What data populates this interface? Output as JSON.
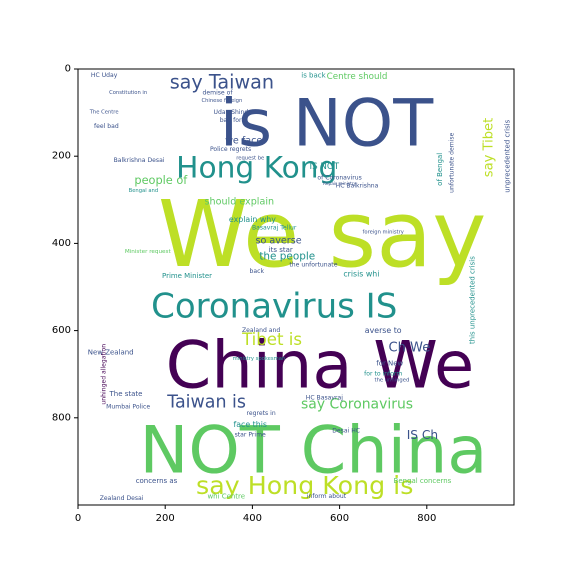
{
  "chart_data": {
    "type": "wordcloud",
    "title": "",
    "xlabel": "",
    "ylabel": "",
    "xlim": [
      0,
      1000
    ],
    "ylim": [
      1000,
      0
    ],
    "x_ticks": [
      0,
      200,
      400,
      600,
      800
    ],
    "y_ticks": [
      0,
      200,
      400,
      600,
      800
    ],
    "grid": false,
    "legend": "none",
    "colormap": [
      "#440154",
      "#3b528b",
      "#21918c",
      "#5ec962",
      "#bddf26"
    ],
    "words": [
      {
        "text": "We say",
        "x": 560,
        "y": 380,
        "size": 210,
        "color": "#bddf26"
      },
      {
        "text": "is NOT",
        "x": 570,
        "y": 125,
        "size": 150,
        "color": "#3b528b"
      },
      {
        "text": "China We",
        "x": 555,
        "y": 680,
        "size": 150,
        "color": "#440154"
      },
      {
        "text": "NOT China",
        "x": 540,
        "y": 875,
        "size": 150,
        "color": "#5ec962"
      },
      {
        "text": "Coronavirus IS",
        "x": 450,
        "y": 545,
        "size": 78,
        "color": "#21918c"
      },
      {
        "text": "Hong Kong",
        "x": 410,
        "y": 225,
        "size": 68,
        "color": "#21918c"
      },
      {
        "text": "say Hong Kong is",
        "x": 520,
        "y": 955,
        "size": 58,
        "color": "#bddf26"
      },
      {
        "text": "say Taiwan",
        "x": 330,
        "y": 30,
        "size": 44,
        "color": "#3b528b"
      },
      {
        "text": "Taiwan is",
        "x": 295,
        "y": 765,
        "size": 40,
        "color": "#3b528b"
      },
      {
        "text": "Tibet is",
        "x": 445,
        "y": 620,
        "size": 38,
        "color": "#bddf26"
      },
      {
        "text": "say Coronavirus",
        "x": 640,
        "y": 770,
        "size": 32,
        "color": "#5ec962"
      },
      {
        "text": "Ch We",
        "x": 760,
        "y": 640,
        "size": 30,
        "color": "#3b528b"
      },
      {
        "text": "IS Ch",
        "x": 790,
        "y": 840,
        "size": 28,
        "color": "#3b528b"
      },
      {
        "text": "people of",
        "x": 190,
        "y": 255,
        "size": 26,
        "color": "#5ec962"
      },
      {
        "text": "the people",
        "x": 480,
        "y": 430,
        "size": 24,
        "color": "#21918c"
      },
      {
        "text": "so averse",
        "x": 460,
        "y": 395,
        "size": 22,
        "color": "#3b528b"
      },
      {
        "text": "should explain",
        "x": 370,
        "y": 305,
        "size": 22,
        "color": "#5ec962"
      },
      {
        "text": "explain why",
        "x": 400,
        "y": 345,
        "size": 18,
        "color": "#21918c"
      },
      {
        "text": "Centre should",
        "x": 640,
        "y": 18,
        "size": 20,
        "color": "#5ec962"
      },
      {
        "text": "is back",
        "x": 540,
        "y": 15,
        "size": 16,
        "color": "#21918c"
      },
      {
        "text": "we face",
        "x": 380,
        "y": 165,
        "size": 22,
        "color": "#3b528b"
      },
      {
        "text": "IS NOT",
        "x": 565,
        "y": 225,
        "size": 20,
        "color": "#21918c"
      },
      {
        "text": "face this",
        "x": 395,
        "y": 815,
        "size": 18,
        "color": "#21918c"
      },
      {
        "text": "its star",
        "x": 465,
        "y": 415,
        "size": 16,
        "color": "#3b528b"
      },
      {
        "text": "crisis whi",
        "x": 650,
        "y": 470,
        "size": 18,
        "color": "#21918c"
      },
      {
        "text": "averse to",
        "x": 700,
        "y": 600,
        "size": 18,
        "color": "#3b528b"
      },
      {
        "text": "Prime Minister",
        "x": 250,
        "y": 475,
        "size": 16,
        "color": "#21918c"
      },
      {
        "text": "New Zealand",
        "x": 75,
        "y": 650,
        "size": 16,
        "color": "#3b528b"
      },
      {
        "text": "Zealand and",
        "x": 420,
        "y": 600,
        "size": 14,
        "color": "#3b528b"
      },
      {
        "text": "for New",
        "x": 715,
        "y": 675,
        "size": 16,
        "color": "#3b528b"
      },
      {
        "text": "for to inform",
        "x": 700,
        "y": 700,
        "size": 14,
        "color": "#21918c"
      },
      {
        "text": "Basavraj Tellur",
        "x": 450,
        "y": 365,
        "size": 14,
        "color": "#21918c"
      },
      {
        "text": "Balkrishna Desai",
        "x": 140,
        "y": 210,
        "size": 14,
        "color": "#3b528b"
      },
      {
        "text": "HC Balkrishna",
        "x": 640,
        "y": 268,
        "size": 14,
        "color": "#3b528b"
      },
      {
        "text": "of Coronavirus",
        "x": 600,
        "y": 250,
        "size": 14,
        "color": "#3b528b"
      },
      {
        "text": "the unfortunate",
        "x": 540,
        "y": 450,
        "size": 14,
        "color": "#3b528b"
      },
      {
        "text": "unfortunate demise",
        "x": 858,
        "y": 215,
        "size": 14,
        "color": "#3b528b",
        "rotate": -90
      },
      {
        "text": "of Bengal",
        "x": 830,
        "y": 230,
        "size": 16,
        "color": "#21918c",
        "rotate": -90
      },
      {
        "text": "say Tibet",
        "x": 943,
        "y": 180,
        "size": 30,
        "color": "#bddf26",
        "rotate": -90
      },
      {
        "text": "unprecedented crisis",
        "x": 985,
        "y": 200,
        "size": 16,
        "color": "#3b528b",
        "rotate": -90
      },
      {
        "text": "this unprecedented crisis",
        "x": 905,
        "y": 530,
        "size": 16,
        "color": "#21918c",
        "rotate": -90
      },
      {
        "text": "unhinged allegation",
        "x": 60,
        "y": 700,
        "size": 14,
        "color": "#440154",
        "rotate": -90
      },
      {
        "text": "demise of",
        "x": 320,
        "y": 55,
        "size": 14,
        "color": "#3b528b"
      },
      {
        "text": "Chinese foreign",
        "x": 330,
        "y": 73,
        "size": 12,
        "color": "#3b528b"
      },
      {
        "text": "feel bad",
        "x": 65,
        "y": 132,
        "size": 14,
        "color": "#3b528b"
      },
      {
        "text": "bad for",
        "x": 350,
        "y": 118,
        "size": 14,
        "color": "#3b528b"
      },
      {
        "text": "Uday Shinde",
        "x": 355,
        "y": 100,
        "size": 14,
        "color": "#3b528b"
      },
      {
        "text": "HC Uday",
        "x": 60,
        "y": 15,
        "size": 14,
        "color": "#3b528b"
      },
      {
        "text": "Police regrets",
        "x": 350,
        "y": 185,
        "size": 14,
        "color": "#3b528b"
      },
      {
        "text": "Bengal and",
        "x": 150,
        "y": 280,
        "size": 12,
        "color": "#21918c"
      },
      {
        "text": "HC Basavraj",
        "x": 565,
        "y": 755,
        "size": 14,
        "color": "#3b528b"
      },
      {
        "text": "Desai HC",
        "x": 615,
        "y": 830,
        "size": 14,
        "color": "#3b528b"
      },
      {
        "text": "The state",
        "x": 110,
        "y": 745,
        "size": 16,
        "color": "#3b528b"
      },
      {
        "text": "Mumbai Police",
        "x": 115,
        "y": 775,
        "size": 14,
        "color": "#3b528b"
      },
      {
        "text": "regrets in",
        "x": 420,
        "y": 790,
        "size": 14,
        "color": "#3b528b"
      },
      {
        "text": "star Prime",
        "x": 395,
        "y": 840,
        "size": 14,
        "color": "#3b528b"
      },
      {
        "text": "concerns as",
        "x": 180,
        "y": 945,
        "size": 16,
        "color": "#3b528b"
      },
      {
        "text": "Bengal concerns",
        "x": 790,
        "y": 945,
        "size": 16,
        "color": "#5ec962"
      },
      {
        "text": "whi Centre",
        "x": 340,
        "y": 980,
        "size": 16,
        "color": "#5ec962"
      },
      {
        "text": "inform about",
        "x": 570,
        "y": 980,
        "size": 14,
        "color": "#3b528b"
      },
      {
        "text": "Zealand Desai",
        "x": 100,
        "y": 985,
        "size": 14,
        "color": "#3b528b"
      },
      {
        "text": "ministry spokesman",
        "x": 415,
        "y": 665,
        "size": 12,
        "color": "#21918c"
      },
      {
        "text": "Minister request",
        "x": 160,
        "y": 420,
        "size": 13,
        "color": "#5ec962"
      },
      {
        "text": "The Centre",
        "x": 60,
        "y": 100,
        "size": 12,
        "color": "#3b528b"
      },
      {
        "text": "Constitution in",
        "x": 115,
        "y": 55,
        "size": 12,
        "color": "#3b528b"
      },
      {
        "text": "request be",
        "x": 395,
        "y": 205,
        "size": 12,
        "color": "#3b528b"
      },
      {
        "text": "back",
        "x": 410,
        "y": 465,
        "size": 14,
        "color": "#3b528b"
      },
      {
        "text": "the unhinged",
        "x": 720,
        "y": 715,
        "size": 12,
        "color": "#3b528b"
      },
      {
        "text": "foreign ministry",
        "x": 700,
        "y": 375,
        "size": 12,
        "color": "#3b528b"
      },
      {
        "text": "Repair ministry",
        "x": 600,
        "y": 265,
        "size": 10,
        "color": "#3b528b"
      }
    ]
  }
}
